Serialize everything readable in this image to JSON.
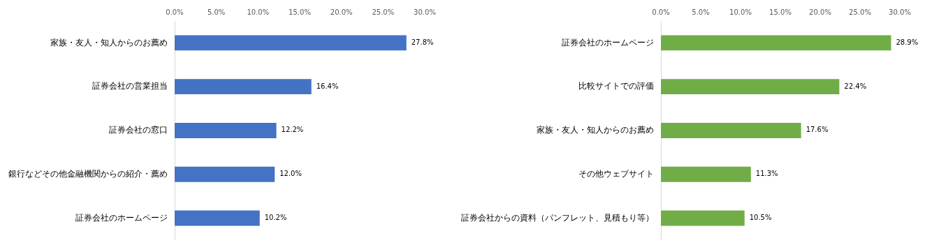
{
  "chart_data": [
    {
      "type": "bar",
      "orientation": "horizontal",
      "categories": [
        "家族・友人・知人からのお薦め",
        "証券会社の営業担当",
        "証券会社の窓口",
        "銀行などその他金融機関からの紹介・薦め",
        "証券会社のホームページ"
      ],
      "values": [
        27.8,
        16.4,
        12.2,
        12.0,
        10.2
      ],
      "color": "#4472c4",
      "value_labels": [
        "27.8%",
        "16.4%",
        "12.2%",
        "12.0%",
        "10.2%"
      ],
      "xlim": [
        0,
        30
      ],
      "xticks": [
        {
          "value": 0,
          "label": "0.0%"
        },
        {
          "value": 5,
          "label": "5.0%"
        },
        {
          "value": 10,
          "label": "10.0%"
        },
        {
          "value": 15,
          "label": "15.0%"
        },
        {
          "value": 20,
          "label": "20.0%"
        },
        {
          "value": 25,
          "label": "25.0%"
        },
        {
          "value": 30,
          "label": "30.0%"
        }
      ]
    },
    {
      "type": "bar",
      "orientation": "horizontal",
      "categories": [
        "証券会社のホームページ",
        "比較サイトでの評価",
        "家族・友人・知人からのお薦め",
        "その他ウェブサイト",
        "証券会社からの資料（パンフレット、見積もり等）"
      ],
      "values": [
        28.9,
        22.4,
        17.6,
        11.3,
        10.5
      ],
      "color": "#70ad47",
      "value_labels": [
        "28.9%",
        "22.4%",
        "17.6%",
        "11.3%",
        "10.5%"
      ],
      "xlim": [
        0,
        30
      ],
      "xticks": [
        {
          "value": 0,
          "label": "0.0%"
        },
        {
          "value": 5,
          "label": "5.0%"
        },
        {
          "value": 10,
          "label": "10.0%"
        },
        {
          "value": 15,
          "label": "15.0%"
        },
        {
          "value": 20,
          "label": "20.0%"
        },
        {
          "value": 25,
          "label": "25.0%"
        },
        {
          "value": 30,
          "label": "30.0%"
        }
      ]
    }
  ]
}
